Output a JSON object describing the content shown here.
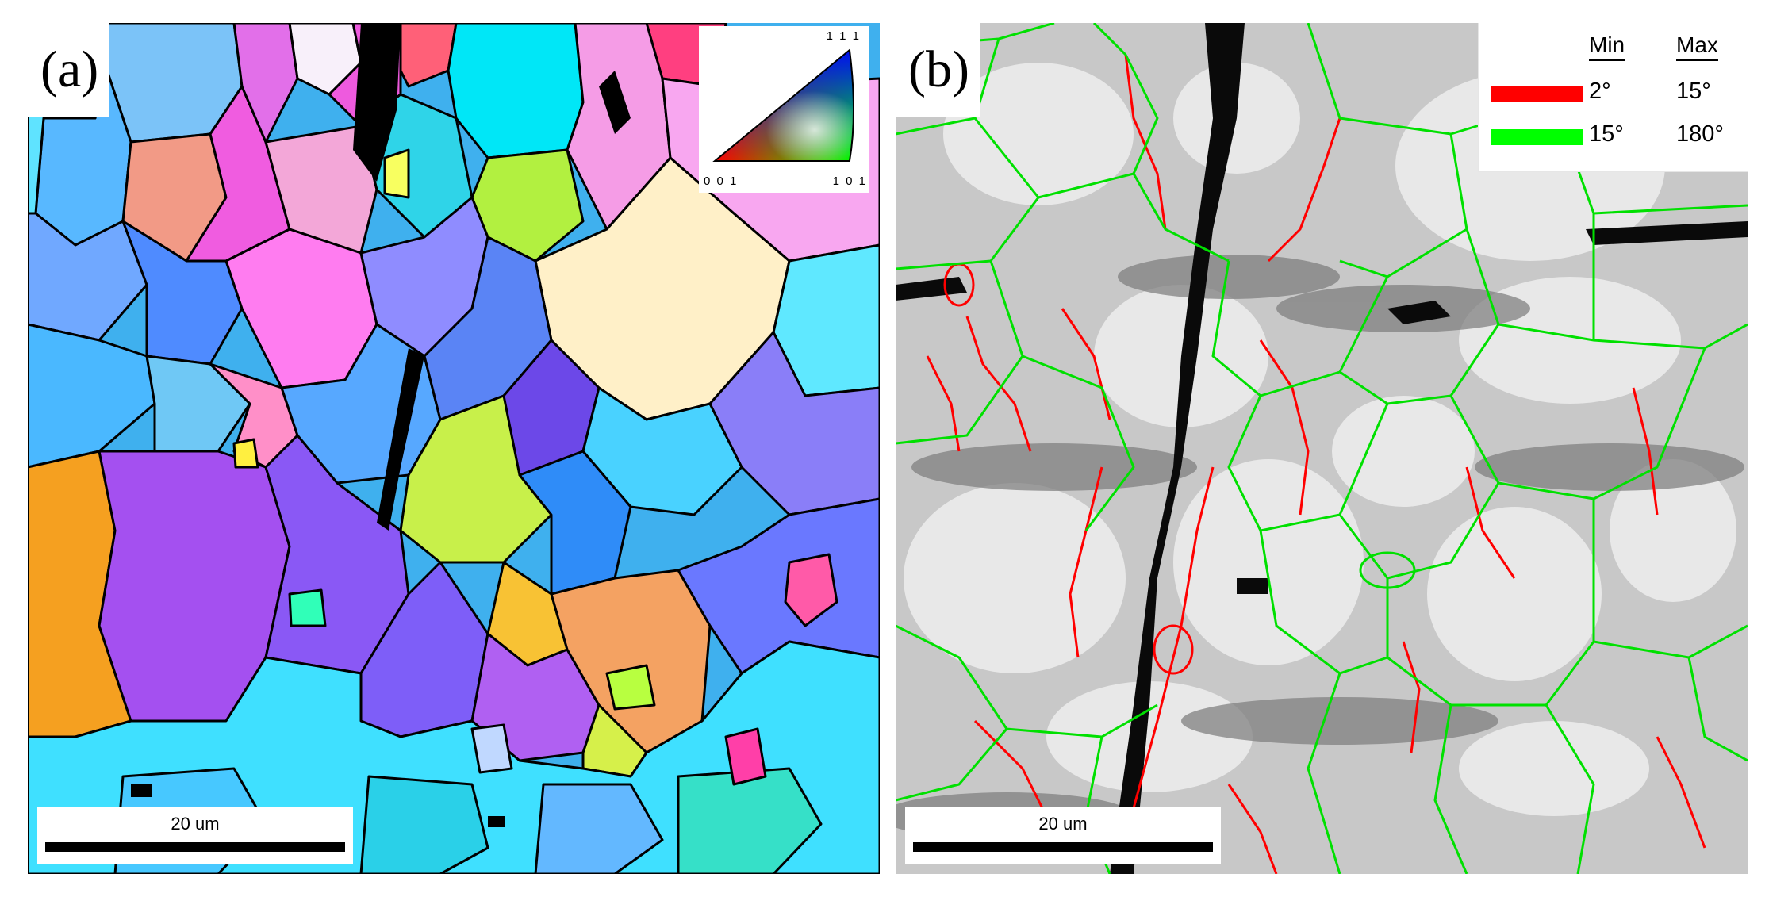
{
  "panels": {
    "a": {
      "label": "(a)",
      "ipf_key": {
        "top": "1 1 1",
        "left": "0 0 1",
        "right": "1 0 1"
      },
      "scale_bar": "20 um"
    },
    "b": {
      "label": "(b)",
      "legend": {
        "min_header": "Min",
        "max_header": "Max",
        "rows": [
          {
            "color": "#ff0000",
            "min": "2°",
            "max": "15°"
          },
          {
            "color": "#00ff00",
            "min": "15°",
            "max": "180°"
          }
        ]
      },
      "scale_bar": "20 um"
    }
  }
}
